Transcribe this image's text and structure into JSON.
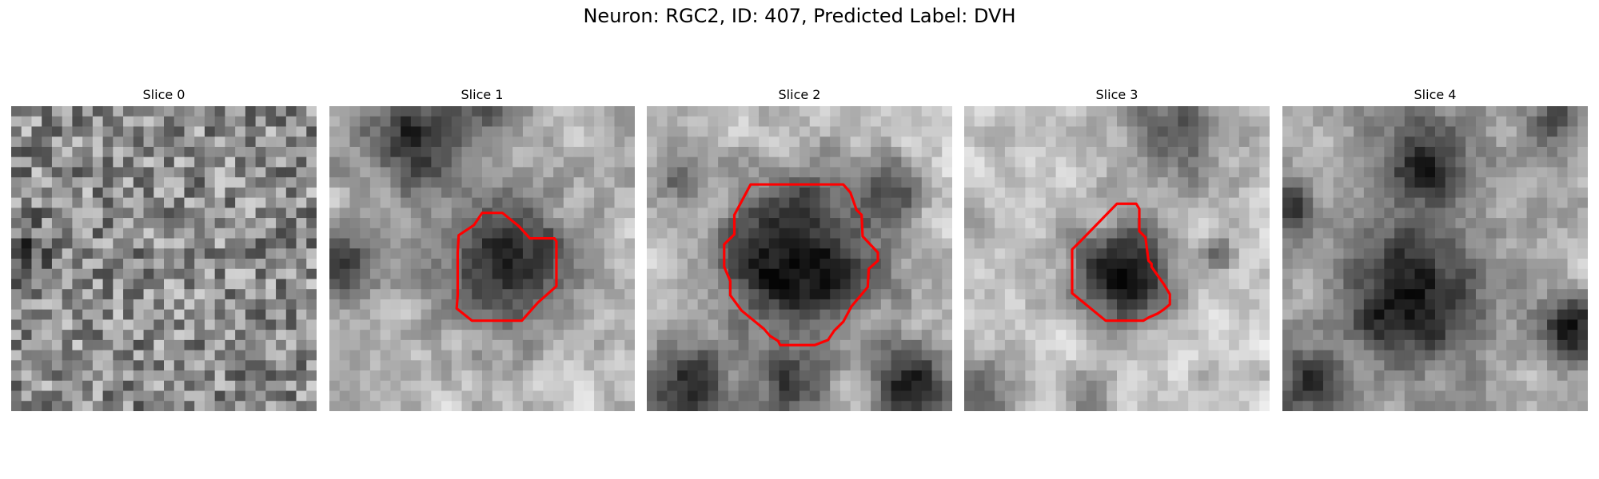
{
  "figure": {
    "title": "Neuron: RGC2, ID: 407, Predicted Label: DVH"
  },
  "panels": [
    {
      "title": "Slice 0",
      "has_contour": false,
      "blob": "noise"
    },
    {
      "title": "Slice 1",
      "has_contour": true,
      "blob": "medium-dark-octagon"
    },
    {
      "title": "Slice 2",
      "has_contour": true,
      "blob": "large-dark-octagon"
    },
    {
      "title": "Slice 3",
      "has_contour": true,
      "blob": "small-dark-irregular"
    },
    {
      "title": "Slice 4",
      "has_contour": false,
      "blob": "multiple-dark-regions"
    }
  ],
  "colors": {
    "contour": "#ff0000",
    "background": "#ffffff",
    "colormap": "gray"
  }
}
